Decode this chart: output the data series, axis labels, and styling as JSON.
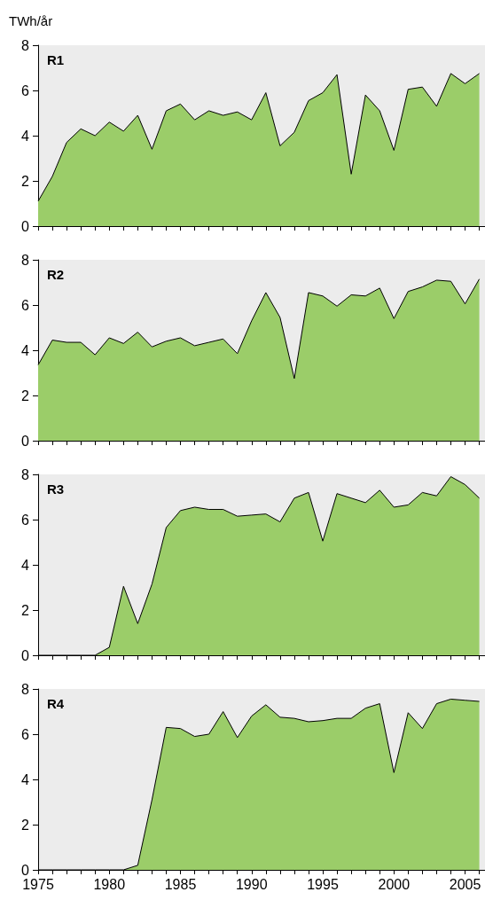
{
  "chart_data": [
    {
      "type": "area",
      "title": "R1",
      "ylabel": "TWh/år",
      "tick_labels": "y",
      "grid": false,
      "color": "#9bcd69",
      "x": [
        1975,
        1976,
        1977,
        1978,
        1979,
        1980,
        1981,
        1982,
        1983,
        1984,
        1985,
        1986,
        1987,
        1988,
        1989,
        1990,
        1991,
        1992,
        1993,
        1994,
        1995,
        1996,
        1997,
        1998,
        1999,
        2000,
        2001,
        2002,
        2003,
        2004,
        2005,
        2006
      ],
      "values": [
        1.1,
        2.2,
        3.7,
        4.3,
        4.0,
        4.6,
        4.2,
        4.9,
        3.4,
        5.1,
        5.4,
        4.7,
        5.1,
        4.9,
        5.05,
        4.7,
        5.9,
        3.55,
        4.15,
        5.55,
        5.9,
        6.7,
        2.3,
        5.8,
        5.1,
        3.35,
        6.05,
        6.15,
        5.3,
        6.75,
        6.3,
        6.75
      ],
      "xlim": [
        1975,
        2006.4
      ],
      "xticks": [
        1975,
        {
          "value": 1976,
          "label": null
        },
        {
          "value": 1977,
          "label": null
        },
        {
          "value": 1978,
          "label": null
        },
        {
          "value": 1979,
          "label": null
        },
        1980,
        {
          "value": 1981,
          "label": null
        },
        {
          "value": 1982,
          "label": null
        },
        {
          "value": 1983,
          "label": null
        },
        {
          "value": 1984,
          "label": null
        },
        1985,
        {
          "value": 1986,
          "label": null
        },
        {
          "value": 1987,
          "label": null
        },
        {
          "value": 1988,
          "label": null
        },
        {
          "value": 1989,
          "label": null
        },
        1990,
        {
          "value": 1991,
          "label": null
        },
        {
          "value": 1992,
          "label": null
        },
        {
          "value": 1993,
          "label": null
        },
        {
          "value": 1994,
          "label": null
        },
        1995,
        {
          "value": 1996,
          "label": null
        },
        {
          "value": 1997,
          "label": null
        },
        {
          "value": 1998,
          "label": null
        },
        {
          "value": 1999,
          "label": null
        },
        2000,
        {
          "value": 2001,
          "label": null
        },
        {
          "value": 2002,
          "label": null
        },
        {
          "value": 2003,
          "label": null
        },
        {
          "value": 2004,
          "label": null
        },
        2005,
        {
          "value": 2006,
          "label": null
        }
      ],
      "ylim": [
        0,
        8
      ],
      "yticks": [
        0,
        2,
        4,
        6,
        8
      ]
    },
    {
      "type": "area",
      "title": "R2",
      "tick_labels": "y",
      "grid": false,
      "color": "#9bcd69",
      "x": [
        1975,
        1976,
        1977,
        1978,
        1979,
        1980,
        1981,
        1982,
        1983,
        1984,
        1985,
        1986,
        1987,
        1988,
        1989,
        1990,
        1991,
        1992,
        1993,
        1994,
        1995,
        1996,
        1997,
        1998,
        1999,
        2000,
        2001,
        2002,
        2003,
        2004,
        2005,
        2006
      ],
      "values": [
        3.35,
        4.45,
        4.35,
        4.35,
        3.8,
        4.55,
        4.3,
        4.8,
        4.15,
        4.4,
        4.55,
        4.2,
        4.35,
        4.5,
        3.85,
        5.3,
        6.55,
        5.45,
        2.75,
        6.55,
        6.4,
        5.95,
        6.45,
        6.4,
        6.75,
        5.4,
        6.6,
        6.8,
        7.1,
        7.05,
        6.05,
        7.15
      ],
      "xlim": [
        1975,
        2006.4
      ],
      "xticks": [
        1975,
        {
          "value": 1976,
          "label": null
        },
        {
          "value": 1977,
          "label": null
        },
        {
          "value": 1978,
          "label": null
        },
        {
          "value": 1979,
          "label": null
        },
        1980,
        {
          "value": 1981,
          "label": null
        },
        {
          "value": 1982,
          "label": null
        },
        {
          "value": 1983,
          "label": null
        },
        {
          "value": 1984,
          "label": null
        },
        1985,
        {
          "value": 1986,
          "label": null
        },
        {
          "value": 1987,
          "label": null
        },
        {
          "value": 1988,
          "label": null
        },
        {
          "value": 1989,
          "label": null
        },
        1990,
        {
          "value": 1991,
          "label": null
        },
        {
          "value": 1992,
          "label": null
        },
        {
          "value": 1993,
          "label": null
        },
        {
          "value": 1994,
          "label": null
        },
        1995,
        {
          "value": 1996,
          "label": null
        },
        {
          "value": 1997,
          "label": null
        },
        {
          "value": 1998,
          "label": null
        },
        {
          "value": 1999,
          "label": null
        },
        2000,
        {
          "value": 2001,
          "label": null
        },
        {
          "value": 2002,
          "label": null
        },
        {
          "value": 2003,
          "label": null
        },
        {
          "value": 2004,
          "label": null
        },
        2005,
        {
          "value": 2006,
          "label": null
        }
      ],
      "ylim": [
        0,
        8
      ],
      "yticks": [
        0,
        2,
        4,
        6,
        8
      ]
    },
    {
      "type": "area",
      "title": "R3",
      "tick_labels": "y",
      "grid": false,
      "color": "#9bcd69",
      "x": [
        1975,
        1976,
        1977,
        1978,
        1979,
        1980,
        1981,
        1982,
        1983,
        1984,
        1985,
        1986,
        1987,
        1988,
        1989,
        1990,
        1991,
        1992,
        1993,
        1994,
        1995,
        1996,
        1997,
        1998,
        1999,
        2000,
        2001,
        2002,
        2003,
        2004,
        2005,
        2006
      ],
      "values": [
        0,
        0,
        0,
        0,
        0,
        0.35,
        3.05,
        1.4,
        3.15,
        5.65,
        6.4,
        6.55,
        6.45,
        6.45,
        6.15,
        6.2,
        6.25,
        5.9,
        6.95,
        7.2,
        5.05,
        7.15,
        6.95,
        6.75,
        7.3,
        6.55,
        6.65,
        7.2,
        7.05,
        7.9,
        7.55,
        6.95
      ],
      "xlim": [
        1975,
        2006.4
      ],
      "xticks": [
        1975,
        {
          "value": 1976,
          "label": null
        },
        {
          "value": 1977,
          "label": null
        },
        {
          "value": 1978,
          "label": null
        },
        {
          "value": 1979,
          "label": null
        },
        1980,
        {
          "value": 1981,
          "label": null
        },
        {
          "value": 1982,
          "label": null
        },
        {
          "value": 1983,
          "label": null
        },
        {
          "value": 1984,
          "label": null
        },
        1985,
        {
          "value": 1986,
          "label": null
        },
        {
          "value": 1987,
          "label": null
        },
        {
          "value": 1988,
          "label": null
        },
        {
          "value": 1989,
          "label": null
        },
        1990,
        {
          "value": 1991,
          "label": null
        },
        {
          "value": 1992,
          "label": null
        },
        {
          "value": 1993,
          "label": null
        },
        {
          "value": 1994,
          "label": null
        },
        1995,
        {
          "value": 1996,
          "label": null
        },
        {
          "value": 1997,
          "label": null
        },
        {
          "value": 1998,
          "label": null
        },
        {
          "value": 1999,
          "label": null
        },
        2000,
        {
          "value": 2001,
          "label": null
        },
        {
          "value": 2002,
          "label": null
        },
        {
          "value": 2003,
          "label": null
        },
        {
          "value": 2004,
          "label": null
        },
        2005,
        {
          "value": 2006,
          "label": null
        }
      ],
      "ylim": [
        0,
        8
      ],
      "yticks": [
        0,
        2,
        4,
        6,
        8
      ]
    },
    {
      "type": "area",
      "title": "R4",
      "grid": false,
      "color": "#9bcd69",
      "x": [
        1975,
        1976,
        1977,
        1978,
        1979,
        1980,
        1981,
        1982,
        1983,
        1984,
        1985,
        1986,
        1987,
        1988,
        1989,
        1990,
        1991,
        1992,
        1993,
        1994,
        1995,
        1996,
        1997,
        1998,
        1999,
        2000,
        2001,
        2002,
        2003,
        2004,
        2005,
        2006
      ],
      "values": [
        0,
        0,
        0,
        0,
        0,
        0,
        0,
        0.2,
        3.1,
        6.3,
        6.25,
        5.9,
        6.0,
        7.0,
        5.85,
        6.8,
        7.3,
        6.75,
        6.7,
        6.55,
        6.6,
        6.7,
        6.7,
        7.15,
        7.35,
        4.3,
        6.95,
        6.25,
        7.35,
        7.55,
        7.5,
        7.45
      ],
      "xlim": [
        1975,
        2006.4
      ],
      "xticks": [
        1975,
        {
          "value": 1976,
          "label": null
        },
        {
          "value": 1977,
          "label": null
        },
        {
          "value": 1978,
          "label": null
        },
        {
          "value": 1979,
          "label": null
        },
        1980,
        {
          "value": 1981,
          "label": null
        },
        {
          "value": 1982,
          "label": null
        },
        {
          "value": 1983,
          "label": null
        },
        {
          "value": 1984,
          "label": null
        },
        1985,
        {
          "value": 1986,
          "label": null
        },
        {
          "value": 1987,
          "label": null
        },
        {
          "value": 1988,
          "label": null
        },
        {
          "value": 1989,
          "label": null
        },
        1990,
        {
          "value": 1991,
          "label": null
        },
        {
          "value": 1992,
          "label": null
        },
        {
          "value": 1993,
          "label": null
        },
        {
          "value": 1994,
          "label": null
        },
        1995,
        {
          "value": 1996,
          "label": null
        },
        {
          "value": 1997,
          "label": null
        },
        {
          "value": 1998,
          "label": null
        },
        {
          "value": 1999,
          "label": null
        },
        2000,
        {
          "value": 2001,
          "label": null
        },
        {
          "value": 2002,
          "label": null
        },
        {
          "value": 2003,
          "label": null
        },
        {
          "value": 2004,
          "label": null
        },
        2005,
        {
          "value": 2006,
          "label": null
        }
      ],
      "ylim": [
        0,
        8
      ],
      "yticks": [
        0,
        2,
        4,
        6,
        8
      ]
    }
  ]
}
